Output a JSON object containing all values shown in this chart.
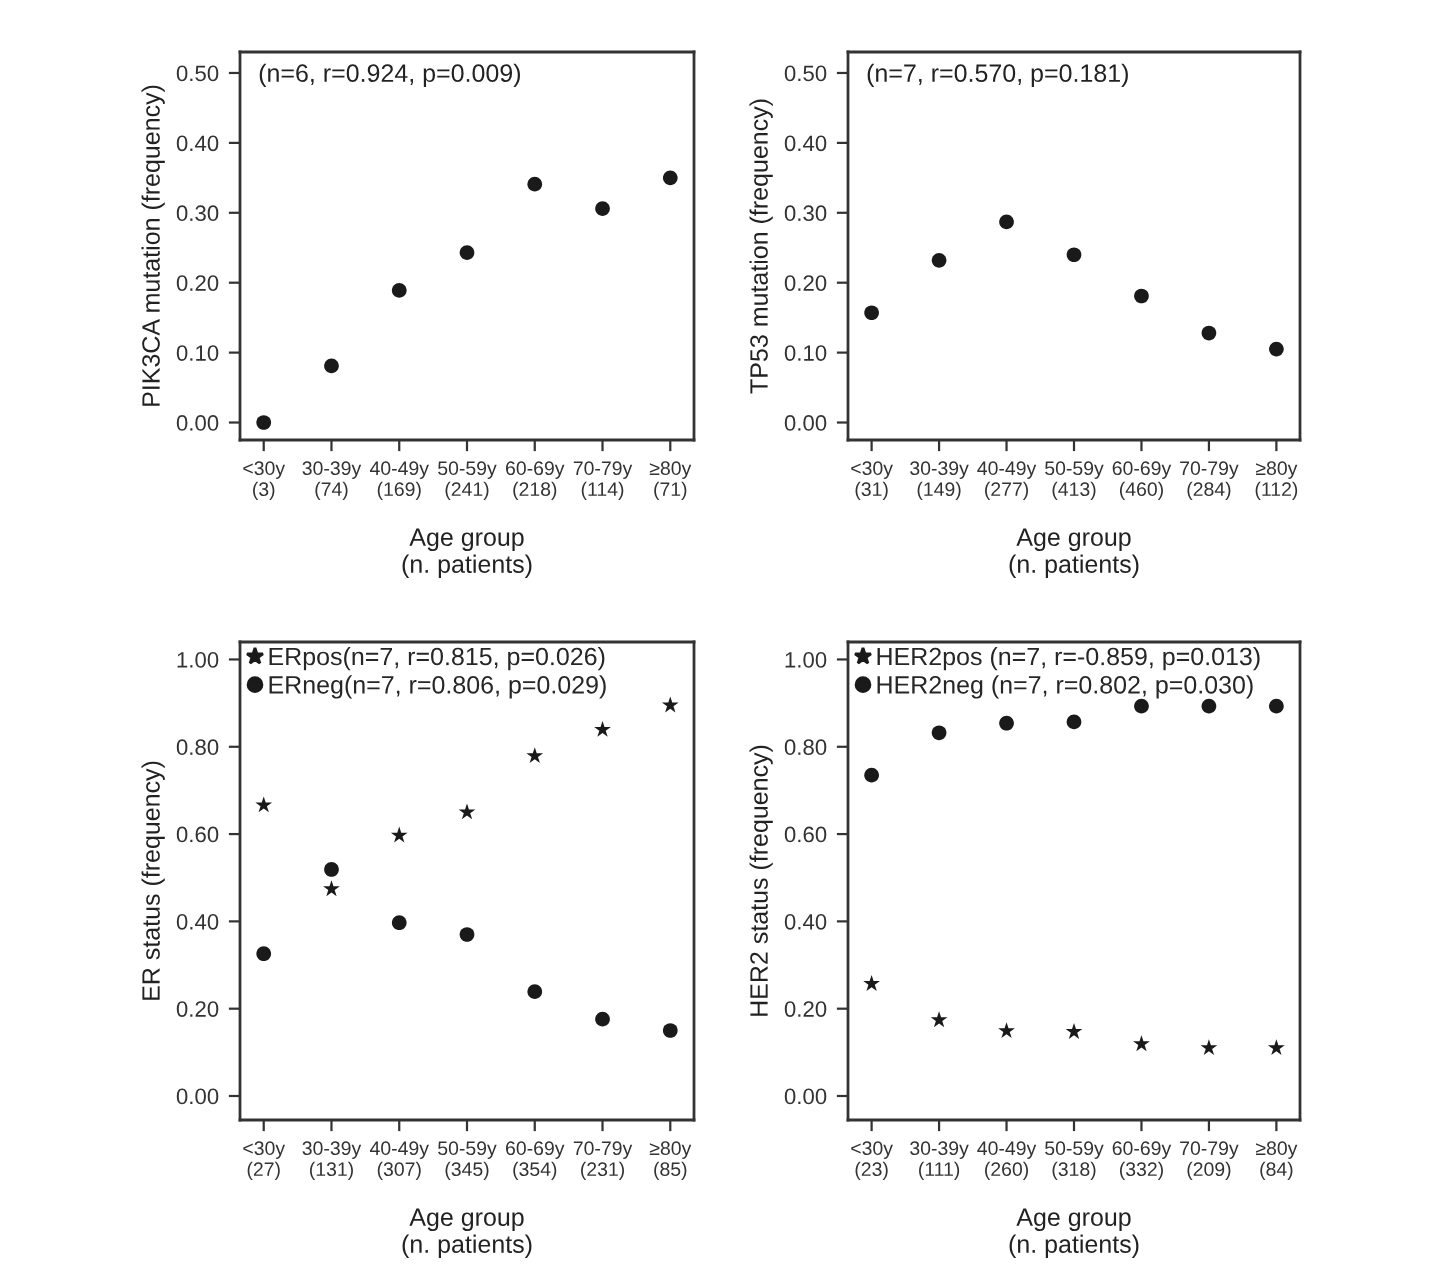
{
  "chart_data": [
    {
      "type": "scatter",
      "ylabel": "PIK3CA mutation (frequency)",
      "xlabel": "Age group\n(n. patients)",
      "annotations": [
        "(n=6, r=0.924, p=0.009)"
      ],
      "categories": [
        "<30y\n(3)",
        "30-39y\n(74)",
        "40-49y\n(169)",
        "50-59y\n(241)",
        "60-69y\n(218)",
        "70-79y\n(114)",
        "≥80y\n(71)"
      ],
      "series": [
        {
          "color": "#1a1a1a",
          "marker": "circle",
          "values": [
            0.0,
            0.081,
            0.189,
            0.243,
            0.341,
            0.306,
            0.35
          ]
        }
      ],
      "ylim": [
        -0.025,
        0.53
      ],
      "yticks": [
        {
          "value": 0,
          "label": "0.00"
        },
        {
          "value": 0.1,
          "label": "0.10"
        },
        {
          "value": 0.2,
          "label": "0.20"
        },
        {
          "value": 0.3,
          "label": "0.30"
        },
        {
          "value": 0.4,
          "label": "0.40"
        },
        {
          "value": 0.5,
          "label": "0.50"
        }
      ],
      "grid": false,
      "legend": false
    },
    {
      "type": "scatter",
      "ylabel": "TP53 mutation (frequency)",
      "xlabel": "Age group\n(n. patients)",
      "annotations": [
        "(n=7, r=0.570, p=0.181)"
      ],
      "categories": [
        "<30y\n(31)",
        "30-39y\n(149)",
        "40-49y\n(277)",
        "50-59y\n(413)",
        "60-69y\n(460)",
        "70-79y\n(284)",
        "≥80y\n(112)"
      ],
      "series": [
        {
          "color": "#1a1a1a",
          "marker": "circle",
          "values": [
            0.157,
            0.232,
            0.287,
            0.24,
            0.181,
            0.128,
            0.105
          ]
        }
      ],
      "ylim": [
        -0.025,
        0.53
      ],
      "yticks": [
        {
          "value": 0,
          "label": "0.00"
        },
        {
          "value": 0.1,
          "label": "0.10"
        },
        {
          "value": 0.2,
          "label": "0.20"
        },
        {
          "value": 0.3,
          "label": "0.30"
        },
        {
          "value": 0.4,
          "label": "0.40"
        },
        {
          "value": 0.5,
          "label": "0.50"
        }
      ],
      "grid": false,
      "legend": false
    },
    {
      "type": "scatter",
      "ylabel": "ER status (frequency)",
      "xlabel": "Age group\n(n. patients)",
      "categories": [
        "<30y\n(27)",
        "30-39y\n(131)",
        "40-49y\n(307)",
        "50-59y\n(345)",
        "60-69y\n(354)",
        "70-79y\n(231)",
        "≥80y\n(85)"
      ],
      "series": [
        {
          "name": "ERpos(n=7, r=0.815, p=0.026)",
          "color": "#1a1a1a",
          "marker": "star",
          "values": [
            0.666,
            0.474,
            0.597,
            0.65,
            0.779,
            0.839,
            0.895
          ]
        },
        {
          "name": "ERneg(n=7, r=0.806, p=0.029)",
          "color": "#1a1a1a",
          "marker": "circle",
          "values": [
            0.326,
            0.519,
            0.397,
            0.37,
            0.239,
            0.176,
            0.15
          ]
        }
      ],
      "ylim": [
        -0.055,
        1.04
      ],
      "yticks": [
        {
          "value": 0,
          "label": "0.00"
        },
        {
          "value": 0.2,
          "label": "0.20"
        },
        {
          "value": 0.4,
          "label": "0.40"
        },
        {
          "value": 0.6,
          "label": "0.60"
        },
        {
          "value": 0.8,
          "label": "0.80"
        },
        {
          "value": 1.0,
          "label": "1.00"
        }
      ],
      "grid": false,
      "legend": "top left"
    },
    {
      "type": "scatter",
      "ylabel": "HER2 status (frequency)",
      "xlabel": "Age group\n(n. patients)",
      "categories": [
        "<30y\n(23)",
        "30-39y\n(111)",
        "40-49y\n(260)",
        "50-59y\n(318)",
        "60-69y\n(332)",
        "70-79y\n(209)",
        "≥80y\n(84)"
      ],
      "series": [
        {
          "name": "HER2pos (n=7, r=-0.859, p=0.013)",
          "color": "#1a1a1a",
          "marker": "star",
          "values": [
            0.257,
            0.174,
            0.149,
            0.147,
            0.119,
            0.11,
            0.11
          ]
        },
        {
          "name": "HER2neg (n=7, r=0.802, p=0.030)",
          "color": "#1a1a1a",
          "marker": "circle",
          "values": [
            0.735,
            0.832,
            0.854,
            0.857,
            0.893,
            0.893,
            0.893
          ]
        }
      ],
      "ylim": [
        -0.055,
        1.04
      ],
      "yticks": [
        {
          "value": 0,
          "label": "0.00"
        },
        {
          "value": 0.2,
          "label": "0.20"
        },
        {
          "value": 0.4,
          "label": "0.40"
        },
        {
          "value": 0.6,
          "label": "0.60"
        },
        {
          "value": 0.8,
          "label": "0.80"
        },
        {
          "value": 1.0,
          "label": "1.00"
        }
      ],
      "grid": false,
      "legend": "top left"
    }
  ]
}
